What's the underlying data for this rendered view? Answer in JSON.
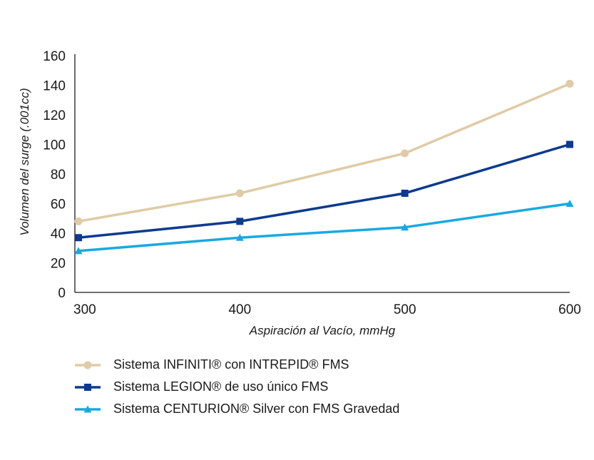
{
  "chart_data": {
    "type": "line",
    "x": [
      300,
      400,
      500,
      600
    ],
    "xlim": [
      300,
      600
    ],
    "ylim": [
      0,
      160
    ],
    "x_ticks": [
      "300",
      "400",
      "500",
      "600"
    ],
    "y_ticks": [
      "0",
      "20",
      "40",
      "60",
      "80",
      "100",
      "120",
      "140",
      "160"
    ],
    "xlabel": "Aspiración al Vacío, mmHg",
    "ylabel": "Volumen del surge (.001cc)",
    "grid": false,
    "legend_position": "bottom-left",
    "series": [
      {
        "name": "Sistema INFINITI® con INTREPID® FMS",
        "values": [
          48,
          67,
          94,
          141
        ],
        "color": "#dfcba6",
        "marker": "circle"
      },
      {
        "name": "Sistema LEGION® de uso único FMS",
        "values": [
          37,
          48,
          67,
          100
        ],
        "color": "#0d3a8e",
        "marker": "square"
      },
      {
        "name": "Sistema CENTURION® Silver con FMS Gravedad",
        "values": [
          28,
          37,
          44,
          60
        ],
        "color": "#19a9e2",
        "marker": "triangle"
      }
    ]
  }
}
